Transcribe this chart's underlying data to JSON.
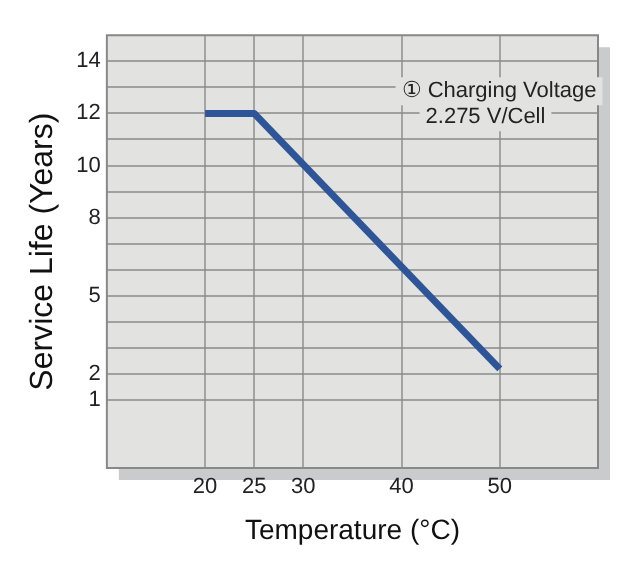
{
  "chart_data": {
    "type": "line",
    "xlabel": "Temperature (°C)",
    "ylabel": "Service Life (Years)",
    "annotations": [
      "① Charging Voltage",
      "2.275 V/Cell"
    ],
    "series": [
      {
        "color": "#2e5597",
        "x": [
          20,
          25,
          50
        ],
        "values": [
          12,
          12,
          2.2
        ]
      }
    ],
    "xlim": [
      10,
      60
    ],
    "xticks": [
      20,
      25,
      30,
      40,
      50
    ],
    "ylim": [
      -1.6,
      15
    ],
    "yticks": [
      1,
      2,
      {
        "value": 3,
        "label": null
      },
      {
        "value": 4,
        "label": null
      },
      5,
      {
        "value": 6,
        "label": null
      },
      {
        "value": 7,
        "label": null
      },
      8,
      {
        "value": 9,
        "label": null
      },
      10,
      {
        "value": 11,
        "label": null
      },
      12,
      {
        "value": 13,
        "label": null
      },
      14
    ],
    "grid": true,
    "legend": false,
    "marker": "none",
    "line_style": "solid"
  }
}
